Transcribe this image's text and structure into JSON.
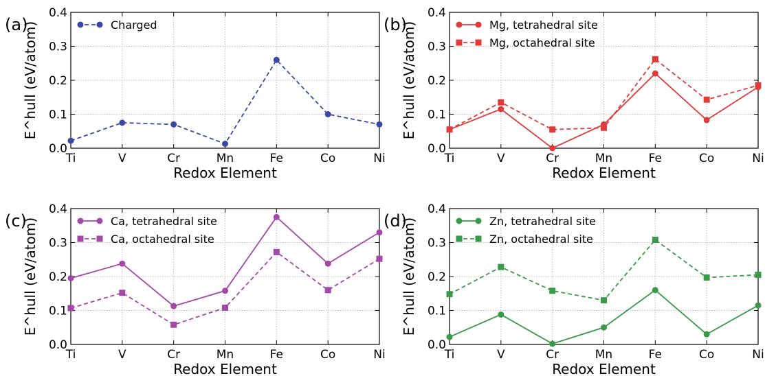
{
  "chart_data": [
    {
      "panel": "(a)",
      "type": "line",
      "categories": [
        "Ti",
        "V",
        "Cr",
        "Mn",
        "Fe",
        "Co",
        "Ni"
      ],
      "xlabel": "Redox Element",
      "ylabel": "E^hull (eV/atom)",
      "ylim": [
        0,
        0.4
      ],
      "yticks": [
        "0.0",
        "0.1",
        "0.2",
        "0.3",
        "0.4"
      ],
      "grid": true,
      "legend_position": "top-left",
      "series": [
        {
          "name": "Charged",
          "color": "#3b48a8",
          "style": "dashed",
          "marker": "circle",
          "values": [
            0.022,
            0.075,
            0.07,
            0.013,
            0.26,
            0.1,
            0.07
          ]
        }
      ]
    },
    {
      "panel": "(b)",
      "type": "line",
      "categories": [
        "Ti",
        "V",
        "Cr",
        "Mn",
        "Fe",
        "Co",
        "Ni"
      ],
      "xlabel": "Redox Element",
      "ylabel": "E^hull (eV/atom)",
      "ylim": [
        0,
        0.4
      ],
      "yticks": [
        "0.0",
        "0.1",
        "0.2",
        "0.3",
        "0.4"
      ],
      "grid": true,
      "legend_position": "top-left",
      "series": [
        {
          "name": "Mg, tetrahedral site",
          "color": "#e03b3b",
          "style": "solid",
          "marker": "circle",
          "values": [
            0.055,
            0.115,
            0.0,
            0.07,
            0.22,
            0.083,
            0.18
          ]
        },
        {
          "name": "Mg, octahedral site",
          "color": "#e03b3b",
          "style": "dashed",
          "marker": "square",
          "values": [
            0.055,
            0.135,
            0.055,
            0.06,
            0.262,
            0.143,
            0.185
          ]
        }
      ]
    },
    {
      "panel": "(c)",
      "type": "line",
      "categories": [
        "Ti",
        "V",
        "Cr",
        "Mn",
        "Fe",
        "Co",
        "Ni"
      ],
      "xlabel": "Redox Element",
      "ylabel": "E^hull (eV/atom)",
      "ylim": [
        0,
        0.4
      ],
      "yticks": [
        "0.0",
        "0.1",
        "0.2",
        "0.3",
        "0.4"
      ],
      "grid": true,
      "legend_position": "top-left",
      "series": [
        {
          "name": "Ca, tetrahedral site",
          "color": "#a347a8",
          "style": "solid",
          "marker": "circle",
          "values": [
            0.195,
            0.238,
            0.113,
            0.158,
            0.375,
            0.238,
            0.33
          ]
        },
        {
          "name": "Ca, octahedral site",
          "color": "#a347a8",
          "style": "dashed",
          "marker": "square",
          "values": [
            0.107,
            0.152,
            0.058,
            0.108,
            0.272,
            0.16,
            0.252
          ]
        }
      ]
    },
    {
      "panel": "(d)",
      "type": "line",
      "categories": [
        "Ti",
        "V",
        "Cr",
        "Mn",
        "Fe",
        "Co",
        "Ni"
      ],
      "xlabel": "Redox Element",
      "ylabel": "E^hull (eV/atom)",
      "ylim": [
        0,
        0.4
      ],
      "yticks": [
        "0.0",
        "0.1",
        "0.2",
        "0.3",
        "0.4"
      ],
      "grid": true,
      "legend_position": "top-left",
      "series": [
        {
          "name": "Zn, tetrahedral site",
          "color": "#3a9a4a",
          "style": "solid",
          "marker": "circle",
          "values": [
            0.022,
            0.088,
            0.002,
            0.05,
            0.16,
            0.03,
            0.115
          ]
        },
        {
          "name": "Zn, octahedral site",
          "color": "#3a9a4a",
          "style": "dashed",
          "marker": "square",
          "values": [
            0.148,
            0.228,
            0.158,
            0.13,
            0.308,
            0.197,
            0.205
          ]
        }
      ]
    }
  ]
}
